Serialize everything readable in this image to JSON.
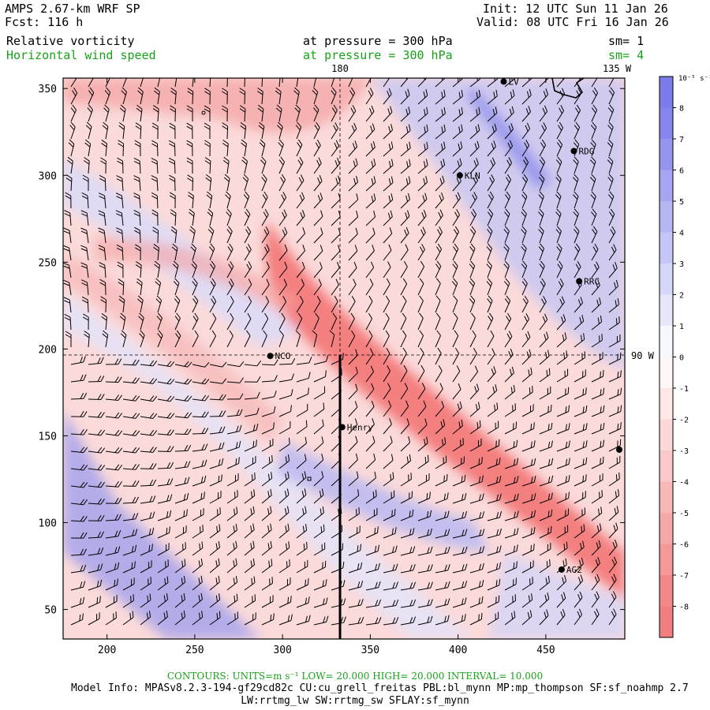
{
  "header": {
    "model": "AMPS 2.67-km WRF SP",
    "forecast": "Fcst:  116 h",
    "init": "Init: 12 UTC Sun 11 Jan 26",
    "valid": "Valid: 08 UTC Fri 16 Jan 26"
  },
  "fields": [
    {
      "name": "Relative vorticity",
      "level": "at pressure =  300 hPa",
      "smooth": "sm= 1",
      "color": "#000000"
    },
    {
      "name": "Horizontal wind speed",
      "level": "at pressure =  300 hPa",
      "smooth": "sm= 4",
      "color": "#17a317"
    }
  ],
  "map": {
    "lon_labels": {
      "top_180": "180",
      "top_135w": "135 W",
      "right_90w": "90 W"
    },
    "x_ticks": [
      "200",
      "250",
      "300",
      "350",
      "400",
      "450"
    ],
    "y_ticks": [
      "50",
      "100",
      "150",
      "200",
      "250",
      "300",
      "350"
    ],
    "stations": [
      {
        "label": "NCO",
        "x": 293,
        "y": 196
      },
      {
        "label": "KLN",
        "x": 401,
        "y": 300
      },
      {
        "label": "RDG",
        "x": 466,
        "y": 314
      },
      {
        "label": "RRC",
        "x": 469,
        "y": 239
      },
      {
        "label": "Henry",
        "x": 334,
        "y": 155
      },
      {
        "label": "AG2",
        "x": 459,
        "y": 73
      },
      {
        "label": "LV",
        "x": 426,
        "y": 354
      }
    ],
    "cross_section_label": "Henry"
  },
  "colorbar": {
    "unit": "10⁻⁵ s⁻¹",
    "labels": [
      "8",
      "7",
      "6",
      "5",
      "4",
      "3",
      "2",
      "1",
      "0",
      "-1",
      "-2",
      "-3",
      "-4",
      "-5",
      "-6",
      "-7",
      "-8"
    ]
  },
  "footer": {
    "contours": "CONTOURS:  UNITS=m s⁻¹  LOW=  20.000       HIGH=  20.000       INTERVAL=   10.000",
    "model_info": "Model Info: MPASv8.2.3-194-gf29cd82c CU:cu_grell_freitas PBL:bl_mynn MP:mp_thompson SF:sf_noahmp 2.7",
    "model_info2": "LW:rrtmg_lw SW:rrtmg_sw SFLAY:sf_mynn"
  },
  "colors": {
    "positive": "#7b7bea",
    "negative": "#f27f7f",
    "label_green": "#17a317"
  }
}
